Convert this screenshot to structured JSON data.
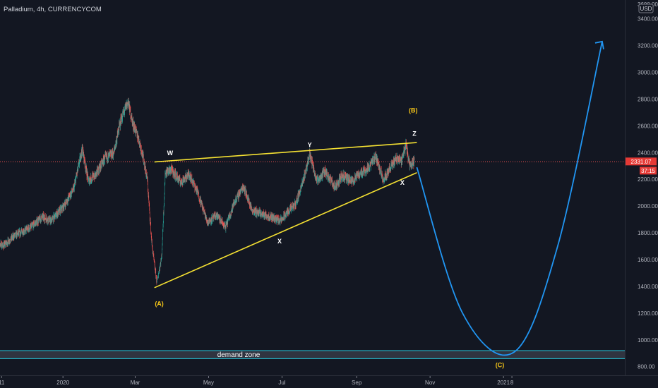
{
  "title": "Palladium, 4h, CURRENCYCOM",
  "currency_label": "USD",
  "colors": {
    "background": "#131722",
    "candle_up": "#26a69a",
    "candle_down": "#ef5350",
    "price_line": "#ef5350",
    "trendline": "#f5e132",
    "projection": "#2196f3",
    "zone_border": "#26c6da",
    "zone_fill": "#363a45",
    "wave_label_white": "#ffffff",
    "wave_label_yellow": "#f5c518",
    "badge": "#e53935"
  },
  "price_badge": {
    "price": "2331.07",
    "countdown": "37:15"
  },
  "demand_zone": {
    "label": "demand zone",
    "top": 920,
    "bottom": 860
  },
  "chart_data": {
    "type": "candlestick",
    "ylim": [
      730,
      3630
    ],
    "yticks": [
      "3400.00",
      "3200.00",
      "3000.00",
      "2800.00",
      "2600.00",
      "2400.00",
      "2200.00",
      "2000.00",
      "1800.00",
      "1600.00",
      "1400.00",
      "1200.00",
      "1000.00",
      "800.00"
    ],
    "ytick_values": [
      3400,
      3200,
      3000,
      2800,
      2600,
      2400,
      2200,
      2000,
      1800,
      1600,
      1400,
      1200,
      1000,
      800
    ],
    "ytick_top_partial": "3600.00",
    "xticks": [
      "11",
      "2020",
      "Mar",
      "May",
      "Jul",
      "Sep",
      "Nov",
      "2021",
      "8"
    ],
    "time_range": [
      "2019-11-05",
      "2021-02-01"
    ],
    "xtick_dates": [
      "2019-11-11",
      "2020-01-01",
      "2020-03-01",
      "2020-05-01",
      "2020-07-01",
      "2020-09-01",
      "2020-11-01",
      "2021-01-01",
      "2021-01-08"
    ],
    "price_path": [
      [
        "2019-11-05",
        1760
      ],
      [
        "2019-11-12",
        1700
      ],
      [
        "2019-11-22",
        1780
      ],
      [
        "2019-12-05",
        1840
      ],
      [
        "2019-12-15",
        1920
      ],
      [
        "2019-12-22",
        1890
      ],
      [
        "2020-01-01",
        1990
      ],
      [
        "2020-01-10",
        2130
      ],
      [
        "2020-01-17",
        2430
      ],
      [
        "2020-01-22",
        2190
      ],
      [
        "2020-01-28",
        2230
      ],
      [
        "2020-02-05",
        2360
      ],
      [
        "2020-02-12",
        2390
      ],
      [
        "2020-02-18",
        2640
      ],
      [
        "2020-02-24",
        2780
      ],
      [
        "2020-02-28",
        2620
      ],
      [
        "2020-03-04",
        2500
      ],
      [
        "2020-03-08",
        2350
      ],
      [
        "2020-03-11",
        2200
      ],
      [
        "2020-03-15",
        1700
      ],
      [
        "2020-03-19",
        1430
      ],
      [
        "2020-03-23",
        1620
      ],
      [
        "2020-03-26",
        2250
      ],
      [
        "2020-03-31",
        2270
      ],
      [
        "2020-04-08",
        2180
      ],
      [
        "2020-04-15",
        2240
      ],
      [
        "2020-04-22",
        2100
      ],
      [
        "2020-04-30",
        1880
      ],
      [
        "2020-05-08",
        1930
      ],
      [
        "2020-05-15",
        1840
      ],
      [
        "2020-05-22",
        2020
      ],
      [
        "2020-05-30",
        2150
      ],
      [
        "2020-06-06",
        1970
      ],
      [
        "2020-06-14",
        1940
      ],
      [
        "2020-06-22",
        1920
      ],
      [
        "2020-06-30",
        1890
      ],
      [
        "2020-07-06",
        1960
      ],
      [
        "2020-07-12",
        2010
      ],
      [
        "2020-07-18",
        2170
      ],
      [
        "2020-07-24",
        2390
      ],
      [
        "2020-07-30",
        2190
      ],
      [
        "2020-08-06",
        2260
      ],
      [
        "2020-08-14",
        2140
      ],
      [
        "2020-08-20",
        2230
      ],
      [
        "2020-08-28",
        2180
      ],
      [
        "2020-09-03",
        2240
      ],
      [
        "2020-09-10",
        2280
      ],
      [
        "2020-09-17",
        2370
      ],
      [
        "2020-09-23",
        2200
      ],
      [
        "2020-09-28",
        2270
      ],
      [
        "2020-10-04",
        2360
      ],
      [
        "2020-10-08",
        2340
      ],
      [
        "2020-10-12",
        2460
      ],
      [
        "2020-10-15",
        2310
      ],
      [
        "2020-10-19",
        2331
      ]
    ],
    "seed": 7,
    "current_price": 2331.07,
    "triangle_upper": [
      [
        "2020-03-17",
        2330
      ],
      [
        "2020-10-21",
        2475
      ]
    ],
    "triangle_lower": [
      [
        "2020-03-17",
        1390
      ],
      [
        "2020-10-21",
        2250
      ]
    ],
    "projection_path": [
      [
        "2020-10-21",
        2290
      ],
      [
        "2020-11-28",
        1200
      ],
      [
        "2021-01-10",
        910
      ],
      [
        "2021-02-15",
        1700
      ],
      [
        "2021-03-24",
        3230
      ]
    ],
    "wave_labels": [
      {
        "text": "(A)",
        "date": "2020-03-21",
        "price": 1255,
        "style": "yellow"
      },
      {
        "text": "W",
        "date": "2020-03-30",
        "price": 2380,
        "style": "white"
      },
      {
        "text": "X",
        "date": "2020-06-29",
        "price": 1720,
        "style": "white"
      },
      {
        "text": "Y",
        "date": "2020-07-24",
        "price": 2440,
        "style": "white"
      },
      {
        "text": "X",
        "date": "2020-10-09",
        "price": 2160,
        "style": "white"
      },
      {
        "text": "Z",
        "date": "2020-10-19",
        "price": 2525,
        "style": "white"
      },
      {
        "text": "(B)",
        "date": "2020-10-18",
        "price": 2700,
        "style": "yellow"
      },
      {
        "text": "(C)",
        "date": "2020-12-29",
        "price": 795,
        "style": "yellow"
      }
    ]
  }
}
